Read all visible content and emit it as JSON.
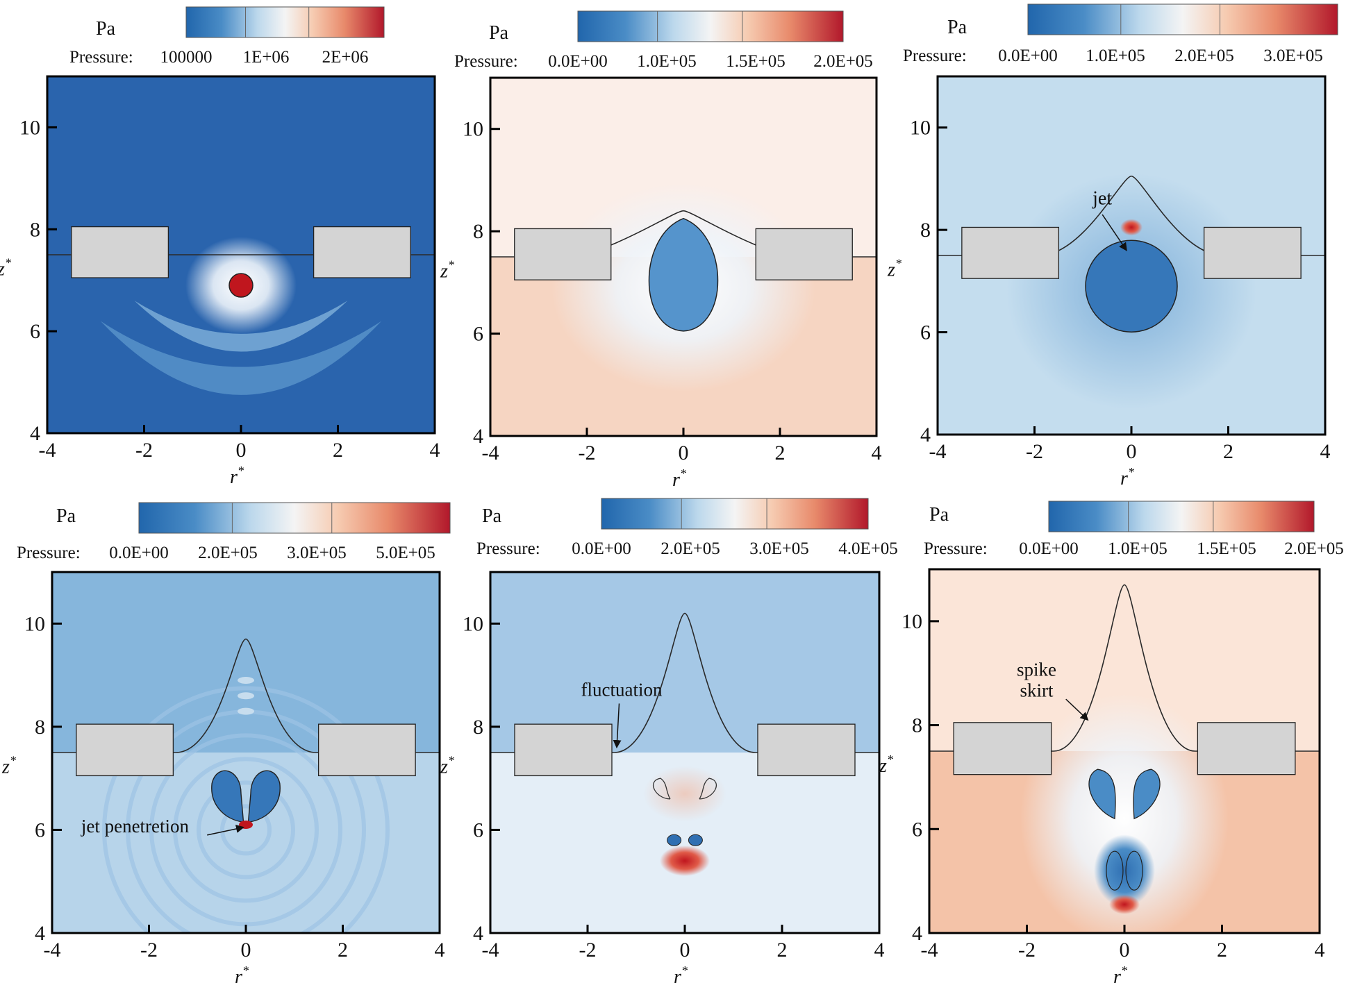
{
  "figure": {
    "colorbar_unit": "Pa",
    "colorbar_label": "Pressure:",
    "x_label": "r",
    "y_label": "z",
    "label_superscript": "*",
    "x_ticks": [
      "-4",
      "-2",
      "0",
      "2",
      "4"
    ],
    "y_ticks": [
      "4",
      "6",
      "8",
      "10"
    ],
    "colormap": [
      "#2166ac",
      "#4a8cc6",
      "#9cc6e4",
      "#f4f4f4",
      "#f6cbb1",
      "#e88a6b",
      "#c22a35",
      "#b2182b"
    ],
    "colors": {
      "box": "#d4d4d4",
      "interface": "#2a2a2a",
      "frame": "#000000"
    },
    "panels": [
      {
        "id": "a",
        "colorbar_ticks": [
          "100000",
          "1E+06",
          "2E+06"
        ],
        "background": "#2a64ad",
        "lower_fluid": "#2a64ad",
        "annotations": []
      },
      {
        "id": "b",
        "colorbar_ticks": [
          "0.0E+00",
          "1.0E+05",
          "1.5E+05",
          "2.0E+05"
        ],
        "background": "#fbeee8",
        "lower_fluid": "#f6d5c2",
        "annotations": []
      },
      {
        "id": "c",
        "colorbar_ticks": [
          "0.0E+00",
          "1.0E+05",
          "2.0E+05",
          "3.0E+05"
        ],
        "background": "#c4ddee",
        "lower_fluid": "#c4ddee",
        "annotations": [
          {
            "text": "jet"
          }
        ]
      },
      {
        "id": "d",
        "colorbar_ticks": [
          "0.0E+00",
          "2.0E+05",
          "3.0E+05",
          "5.0E+05"
        ],
        "background": "#86b6dc",
        "lower_fluid": "#b7d4ea",
        "annotations": [
          {
            "text": "jet penetretion"
          }
        ]
      },
      {
        "id": "e",
        "colorbar_ticks": [
          "0.0E+00",
          "2.0E+05",
          "3.0E+05",
          "4.0E+05"
        ],
        "background": "#a5c8e6",
        "lower_fluid": "#e4eef7",
        "annotations": [
          {
            "text": "fluctuation"
          }
        ]
      },
      {
        "id": "f",
        "colorbar_ticks": [
          "0.0E+00",
          "1.0E+05",
          "1.5E+05",
          "2.0E+05"
        ],
        "background": "#fbe5d8",
        "lower_fluid": "#f4c3a8",
        "annotations": [
          {
            "text": "spike"
          },
          {
            "text": "skirt"
          }
        ]
      }
    ]
  }
}
